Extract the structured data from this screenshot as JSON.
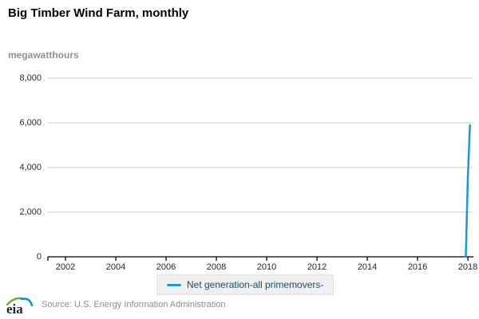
{
  "title": "Big Timber Wind Farm, monthly",
  "legend": {
    "label": "Net generation-all primemovers-"
  },
  "footer": {
    "logo_text": "eia",
    "source": "Source: U.S. Energy Information Administration"
  },
  "colors": {
    "series_line": "#2196d2",
    "gridline": "#cccccc",
    "axis_line": "#000000",
    "legend_text": "#1b4a6b",
    "logo_green": "#69a832",
    "logo_blue": "#0096d7",
    "logo_text_color": "#1b2433"
  },
  "chart_data": {
    "type": "line",
    "title": "Big Timber Wind Farm, monthly",
    "xlabel": "",
    "ylabel": "megawatthours",
    "ylim": [
      0,
      8000
    ],
    "xlim": [
      2001.3,
      2018.22
    ],
    "grid": true,
    "legend_position": "bottom-center",
    "yticks": [
      {
        "value": 0,
        "label": "0"
      },
      {
        "value": 2000,
        "label": "2,000"
      },
      {
        "value": 4000,
        "label": "4,000"
      },
      {
        "value": 6000,
        "label": "6,000"
      },
      {
        "value": 8000,
        "label": "8,000"
      }
    ],
    "xticks": [
      {
        "value": 2002,
        "label": "2002"
      },
      {
        "value": 2004,
        "label": "2004"
      },
      {
        "value": 2006,
        "label": "2006"
      },
      {
        "value": 2008,
        "label": "2008"
      },
      {
        "value": 2010,
        "label": "2010"
      },
      {
        "value": 2012,
        "label": "2012"
      },
      {
        "value": 2014,
        "label": "2014"
      },
      {
        "value": 2016,
        "label": "2016"
      },
      {
        "value": 2018,
        "label": "2018"
      }
    ],
    "series": [
      {
        "name": "Net generation-all primemovers-",
        "months": [
          "2017-12",
          "2018-01",
          "2018-02"
        ],
        "x": [
          2017.917,
          2018.0,
          2018.083
        ],
        "values": [
          0,
          3600,
          5900
        ]
      }
    ]
  }
}
